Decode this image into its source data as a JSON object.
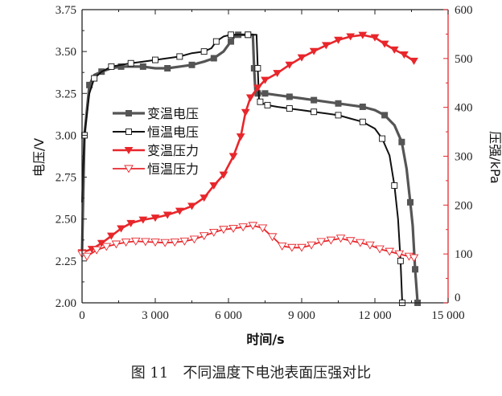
{
  "caption": "图 11　不同温度下电池表面压强对比",
  "chart_data": {
    "type": "line",
    "title": "图 11　不同温度下电池表面压强对比",
    "xlabel": "时间/s",
    "ylabel": "电压/V",
    "y2label": "压强/kPa",
    "xlim": [
      0,
      15000
    ],
    "ylim": [
      2.0,
      3.75
    ],
    "y2lim": [
      0,
      600
    ],
    "xticks": [
      0,
      3000,
      6000,
      9000,
      12000,
      15000
    ],
    "xtick_labels": [
      "0",
      "3 000",
      "6 000",
      "9 000",
      "12 000",
      "15 000"
    ],
    "yticks": [
      2.0,
      2.25,
      2.5,
      2.75,
      3.0,
      3.25,
      3.5,
      3.75
    ],
    "ytick_labels": [
      "2.00",
      "2.25",
      "2.50",
      "2.75",
      "3.00",
      "3.25",
      "3.50",
      "3.75"
    ],
    "y2ticks": [
      0,
      100,
      200,
      300,
      400,
      500,
      600
    ],
    "y2tick_labels": [
      "0",
      "100",
      "200",
      "300",
      "400",
      "500",
      "600"
    ],
    "grid": false,
    "legend_position": "left-middle",
    "colors": {
      "dark": "#555555",
      "black": "#111111",
      "red": "#e8262b",
      "axis_right": "#e8262b"
    },
    "series": [
      {
        "name": "变温电压",
        "axis": "left",
        "color": "#555555",
        "marker": "filled-square",
        "x": [
          0,
          100,
          300,
          500,
          800,
          1200,
          1600,
          2000,
          2500,
          3000,
          3500,
          4000,
          4500,
          5000,
          5400,
          5800,
          6100,
          6300,
          6400,
          6600,
          6800,
          7000,
          7050,
          7100,
          7200,
          7300,
          7500,
          8000,
          8500,
          9000,
          9500,
          10000,
          10500,
          11000,
          11500,
          12000,
          12400,
          12800,
          13100,
          13300,
          13450,
          13550,
          13650,
          13750
        ],
        "y": [
          2.3,
          3.0,
          3.3,
          3.36,
          3.38,
          3.4,
          3.41,
          3.41,
          3.41,
          3.4,
          3.4,
          3.41,
          3.42,
          3.44,
          3.46,
          3.5,
          3.56,
          3.6,
          3.6,
          3.6,
          3.6,
          3.6,
          3.4,
          3.27,
          3.25,
          3.25,
          3.25,
          3.24,
          3.23,
          3.22,
          3.21,
          3.2,
          3.19,
          3.18,
          3.17,
          3.15,
          3.12,
          3.06,
          2.96,
          2.8,
          2.6,
          2.46,
          2.2,
          2.0
        ]
      },
      {
        "name": "恒温电压",
        "axis": "left",
        "color": "#111111",
        "marker": "open-square",
        "x": [
          0,
          30,
          100,
          300,
          500,
          800,
          1200,
          1600,
          2000,
          2500,
          3000,
          3500,
          4000,
          4500,
          5000,
          5300,
          5500,
          5800,
          6100,
          6400,
          6800,
          7150,
          7200,
          7250,
          7300,
          7400,
          7600,
          8000,
          8500,
          9000,
          9500,
          10000,
          10500,
          11000,
          11500,
          12000,
          12300,
          12600,
          12800,
          12950,
          13050,
          13120
        ],
        "y": [
          2.6,
          2.75,
          3.0,
          3.25,
          3.34,
          3.38,
          3.41,
          3.42,
          3.43,
          3.44,
          3.45,
          3.46,
          3.47,
          3.49,
          3.5,
          3.52,
          3.56,
          3.59,
          3.6,
          3.6,
          3.6,
          3.6,
          3.4,
          3.22,
          3.2,
          3.19,
          3.18,
          3.17,
          3.16,
          3.15,
          3.14,
          3.13,
          3.12,
          3.1,
          3.08,
          3.04,
          2.98,
          2.88,
          2.7,
          2.5,
          2.25,
          2.0
        ]
      },
      {
        "name": "变温压力",
        "axis": "right",
        "color": "#e8262b",
        "marker": "filled-triangle-down",
        "x": [
          0,
          400,
          800,
          1200,
          1600,
          2000,
          2500,
          3000,
          3500,
          4000,
          4500,
          5000,
          5400,
          5800,
          6200,
          6500,
          6700,
          6900,
          7200,
          7500,
          8000,
          8500,
          9000,
          9500,
          10000,
          10500,
          11000,
          11500,
          12000,
          12400,
          12800,
          13200,
          13600
        ],
        "y": [
          103,
          110,
          122,
          137,
          152,
          163,
          170,
          174,
          180,
          188,
          198,
          215,
          240,
          262,
          300,
          340,
          390,
          420,
          440,
          456,
          470,
          487,
          502,
          515,
          527,
          538,
          545,
          548,
          543,
          530,
          518,
          508,
          495
        ]
      },
      {
        "name": "恒温压力",
        "axis": "right",
        "color": "#e8262b",
        "marker": "open-triangle-down",
        "x": [
          0,
          200,
          600,
          1000,
          1400,
          1800,
          2200,
          2600,
          3000,
          3400,
          3800,
          4200,
          4600,
          5000,
          5400,
          5800,
          6200,
          6600,
          7000,
          7400,
          7800,
          8200,
          8600,
          9000,
          9400,
          9800,
          10200,
          10600,
          11000,
          11400,
          11800,
          12200,
          12600,
          13000,
          13400,
          13600
        ],
        "y": [
          100,
          95,
          108,
          115,
          120,
          124,
          126,
          125,
          124,
          123,
          124,
          126,
          130,
          137,
          144,
          150,
          152,
          155,
          158,
          153,
          135,
          116,
          113,
          113,
          118,
          125,
          128,
          132,
          127,
          123,
          118,
          110,
          105,
          100,
          95,
          92
        ]
      }
    ]
  }
}
